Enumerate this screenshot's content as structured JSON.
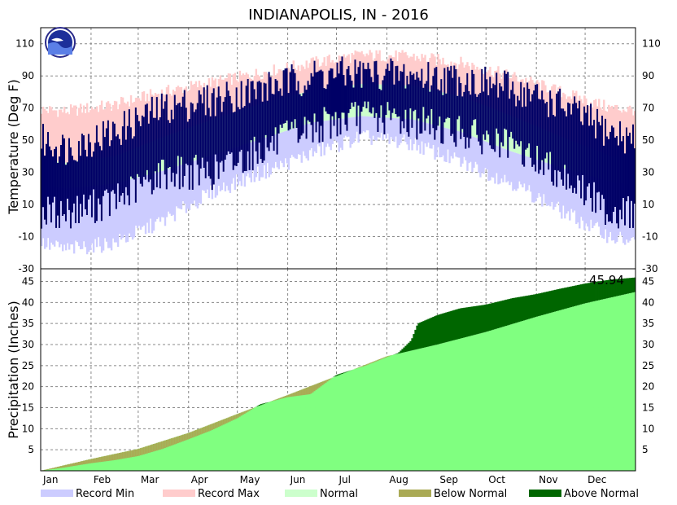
{
  "chart_data": [
    {
      "type": "area",
      "title": "INDIANAPOLIS, IN - 2016",
      "ylabel": "Temperature (Deg F)",
      "ylim": [
        -30,
        120
      ],
      "yticks": [
        -30,
        -10,
        10,
        30,
        50,
        70,
        90,
        110
      ],
      "months": [
        "Jan",
        "Feb",
        "Mar",
        "Apr",
        "May",
        "Jun",
        "Jul",
        "Aug",
        "Sep",
        "Oct",
        "Nov",
        "Dec"
      ],
      "grid": true,
      "logo": "NOAA",
      "record_max_monthly_approx": [
        68,
        72,
        80,
        86,
        92,
        98,
        103,
        102,
        98,
        90,
        80,
        70
      ],
      "record_min_monthly_approx": [
        -18,
        -14,
        0,
        18,
        30,
        42,
        52,
        48,
        36,
        24,
        6,
        -10
      ],
      "normal_high_monthly_approx": [
        36,
        40,
        52,
        63,
        73,
        81,
        85,
        84,
        77,
        65,
        52,
        40
      ],
      "normal_low_monthly_approx": [
        20,
        23,
        31,
        41,
        51,
        61,
        65,
        63,
        55,
        43,
        33,
        24
      ],
      "observed_daily_range_monthly_approx": [
        {
          "month": "Jan",
          "low": 5,
          "high": 45
        },
        {
          "month": "Feb",
          "low": 12,
          "high": 55
        },
        {
          "month": "Mar",
          "low": 30,
          "high": 70
        },
        {
          "month": "Apr",
          "low": 30,
          "high": 75
        },
        {
          "month": "May",
          "low": 45,
          "high": 82
        },
        {
          "month": "Jun",
          "low": 58,
          "high": 90
        },
        {
          "month": "Jul",
          "low": 65,
          "high": 92
        },
        {
          "month": "Aug",
          "low": 62,
          "high": 90
        },
        {
          "month": "Sep",
          "low": 55,
          "high": 88
        },
        {
          "month": "Oct",
          "low": 45,
          "high": 82
        },
        {
          "month": "Nov",
          "low": 30,
          "high": 72
        },
        {
          "month": "Dec",
          "low": 5,
          "high": 55
        }
      ]
    },
    {
      "type": "area",
      "ylabel": "Precipitation (Inches)",
      "ylim": [
        0,
        48
      ],
      "yticks": [
        5,
        10,
        15,
        20,
        25,
        30,
        35,
        40,
        45
      ],
      "months": [
        "Jan",
        "Feb",
        "Mar",
        "Apr",
        "May",
        "Jun",
        "Jul",
        "Aug",
        "Sep",
        "Oct",
        "Nov",
        "Dec"
      ],
      "grid": true,
      "total_label": "45.94",
      "normal_cumulative": [
        {
          "day": 0,
          "value": 0
        },
        {
          "day": 31,
          "value": 2.8
        },
        {
          "day": 60,
          "value": 5.2
        },
        {
          "day": 91,
          "value": 9.0
        },
        {
          "day": 121,
          "value": 13.5
        },
        {
          "day": 152,
          "value": 18.0
        },
        {
          "day": 182,
          "value": 22.5
        },
        {
          "day": 213,
          "value": 27.2
        },
        {
          "day": 244,
          "value": 30.0
        },
        {
          "day": 274,
          "value": 33.0
        },
        {
          "day": 305,
          "value": 36.6
        },
        {
          "day": 335,
          "value": 39.8
        },
        {
          "day": 366,
          "value": 42.5
        }
      ],
      "observed_cumulative": [
        {
          "day": 0,
          "value": 0
        },
        {
          "day": 15,
          "value": 0.8
        },
        {
          "day": 31,
          "value": 1.8
        },
        {
          "day": 45,
          "value": 2.5
        },
        {
          "day": 60,
          "value": 3.5
        },
        {
          "day": 75,
          "value": 5.2
        },
        {
          "day": 91,
          "value": 7.5
        },
        {
          "day": 105,
          "value": 9.6
        },
        {
          "day": 121,
          "value": 12.5
        },
        {
          "day": 135,
          "value": 15.8
        },
        {
          "day": 152,
          "value": 17.5
        },
        {
          "day": 166,
          "value": 18.2
        },
        {
          "day": 182,
          "value": 22.8
        },
        {
          "day": 200,
          "value": 25.0
        },
        {
          "day": 213,
          "value": 27.0
        },
        {
          "day": 220,
          "value": 28.0
        },
        {
          "day": 228,
          "value": 31.0
        },
        {
          "day": 232,
          "value": 35.0
        },
        {
          "day": 244,
          "value": 37.0
        },
        {
          "day": 258,
          "value": 38.6
        },
        {
          "day": 274,
          "value": 39.5
        },
        {
          "day": 290,
          "value": 41.0
        },
        {
          "day": 305,
          "value": 42.0
        },
        {
          "day": 320,
          "value": 43.3
        },
        {
          "day": 335,
          "value": 44.5
        },
        {
          "day": 350,
          "value": 45.4
        },
        {
          "day": 366,
          "value": 45.94
        }
      ]
    }
  ],
  "legend": [
    {
      "label": "Record Min",
      "color": "#ccccff"
    },
    {
      "label": "Record Max",
      "color": "#ffcccc"
    },
    {
      "label": "Normal",
      "color": "#ccffcc"
    },
    {
      "label": "Below Normal",
      "color": "#aaaa55"
    },
    {
      "label": "Above Normal",
      "color": "#006600"
    }
  ],
  "colors": {
    "observed": "#000066",
    "precip_normal": "#80ff80",
    "grid": "#888888"
  }
}
